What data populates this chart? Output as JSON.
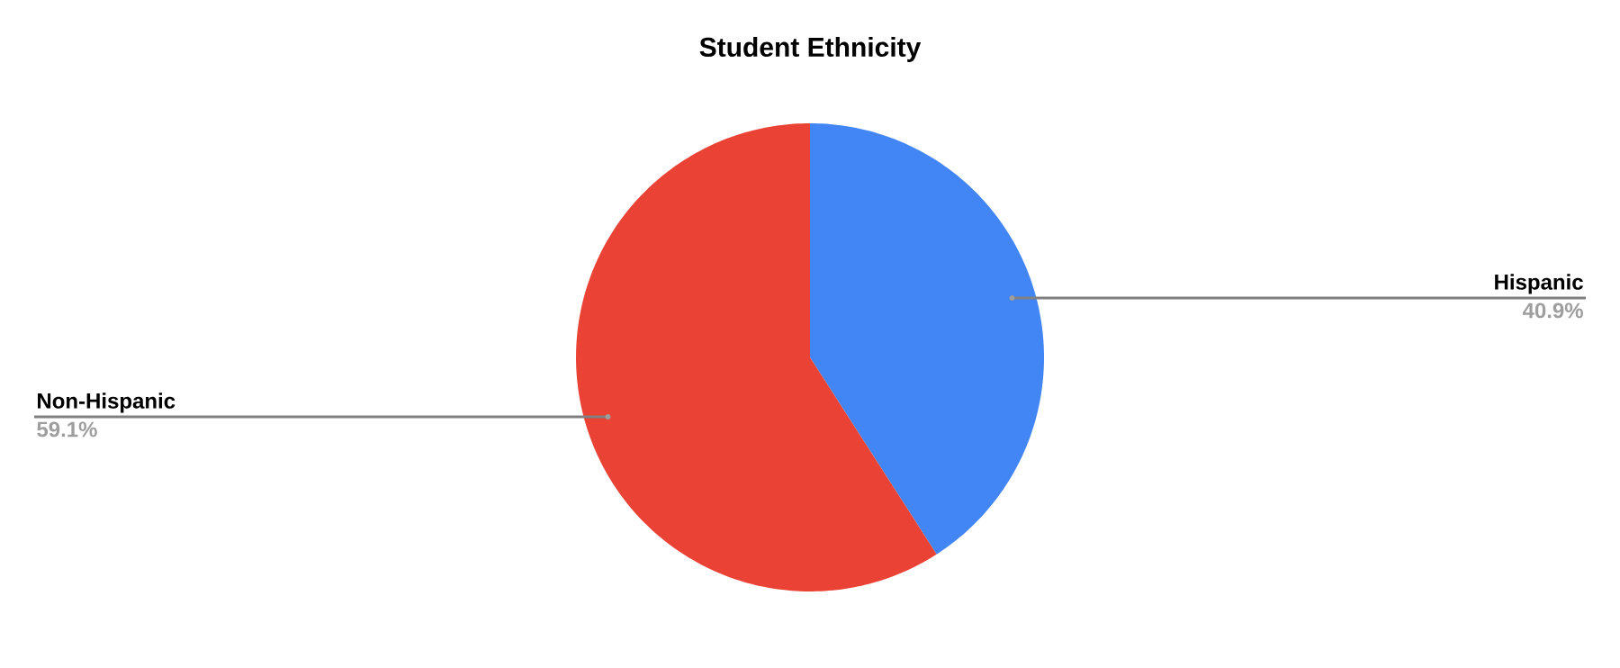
{
  "chart_data": {
    "type": "pie",
    "title": "Student Ethnicity",
    "categories": [
      "Hispanic",
      "Non-Hispanic"
    ],
    "values": [
      40.9,
      59.1
    ],
    "colors": [
      "#4285f4",
      "#ea4335"
    ],
    "value_labels": [
      "40.9%",
      "59.1%"
    ],
    "legend": false
  }
}
